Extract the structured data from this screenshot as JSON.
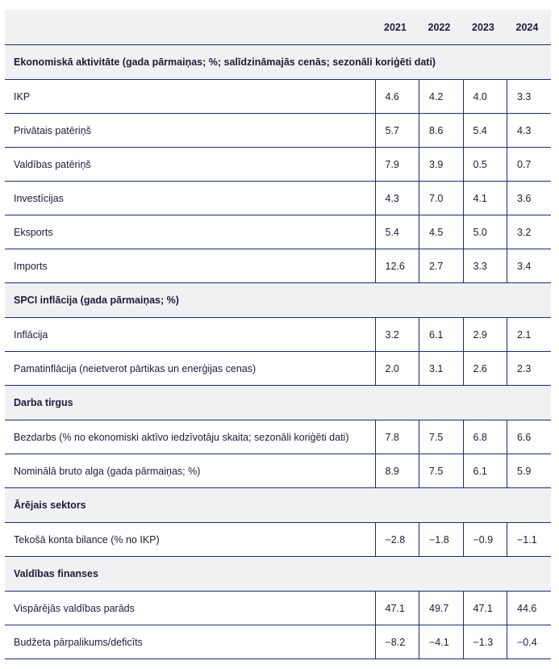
{
  "table": {
    "years": [
      "2021",
      "2022",
      "2023",
      "2024"
    ],
    "sections": [
      {
        "title": "Ekonomiskā aktivitāte (gada pārmaiņas; %; salīdzināmajās cenās; sezonāli koriģēti dati)",
        "rows": [
          {
            "label": "IKP",
            "values": [
              "4.6",
              "4.2",
              "4.0",
              "3.3"
            ]
          },
          {
            "label": "Privātais patēriņš",
            "values": [
              "5.7",
              "8.6",
              "5.4",
              "4.3"
            ]
          },
          {
            "label": "Valdības patēriņš",
            "values": [
              "7.9",
              "3.9",
              "0.5",
              "0.7"
            ]
          },
          {
            "label": "Investīcijas",
            "values": [
              "4.3",
              "7.0",
              "4.1",
              "3.6"
            ]
          },
          {
            "label": "Eksports",
            "values": [
              "5.4",
              "4.5",
              "5.0",
              "3.2"
            ]
          },
          {
            "label": "Imports",
            "values": [
              "12.6",
              "2.7",
              "3.3",
              "3.4"
            ]
          }
        ]
      },
      {
        "title": "SPCI inflācija (gada pārmaiņas; %)",
        "rows": [
          {
            "label": "Inflācija",
            "values": [
              "3.2",
              "6.1",
              "2.9",
              "2.1"
            ]
          },
          {
            "label": "Pamatinflācija (neietverot pārtikas un enerģijas cenas)",
            "values": [
              "2.0",
              "3.1",
              "2.6",
              "2.3"
            ]
          }
        ]
      },
      {
        "title": "Darba tirgus",
        "rows": [
          {
            "label": "Bezdarbs (% no ekonomiski aktīvo iedzīvotāju skaita; sezonāli koriģēti dati)",
            "values": [
              "7.8",
              "7.5",
              "6.8",
              "6.6"
            ]
          },
          {
            "label": "Nominālā bruto alga (gada pārmaiņas; %)",
            "values": [
              "8.9",
              "7.5",
              "6.1",
              "5.9"
            ]
          }
        ]
      },
      {
        "title": "Ārējais sektors",
        "rows": [
          {
            "label": "Tekošā konta bilance (% no IKP)",
            "values": [
              "−2.8",
              "−1.8",
              "−0.9",
              "−1.1"
            ]
          }
        ]
      },
      {
        "title": "Valdības finanses",
        "rows": [
          {
            "label": "Vispārējās valdības parāds",
            "values": [
              "47.1",
              "49.7",
              "47.1",
              "44.6"
            ]
          },
          {
            "label": "Budžeta pārpalikums/deficīts",
            "values": [
              "−8.2",
              "−4.1",
              "−1.3",
              "−0.4"
            ]
          }
        ]
      }
    ]
  }
}
